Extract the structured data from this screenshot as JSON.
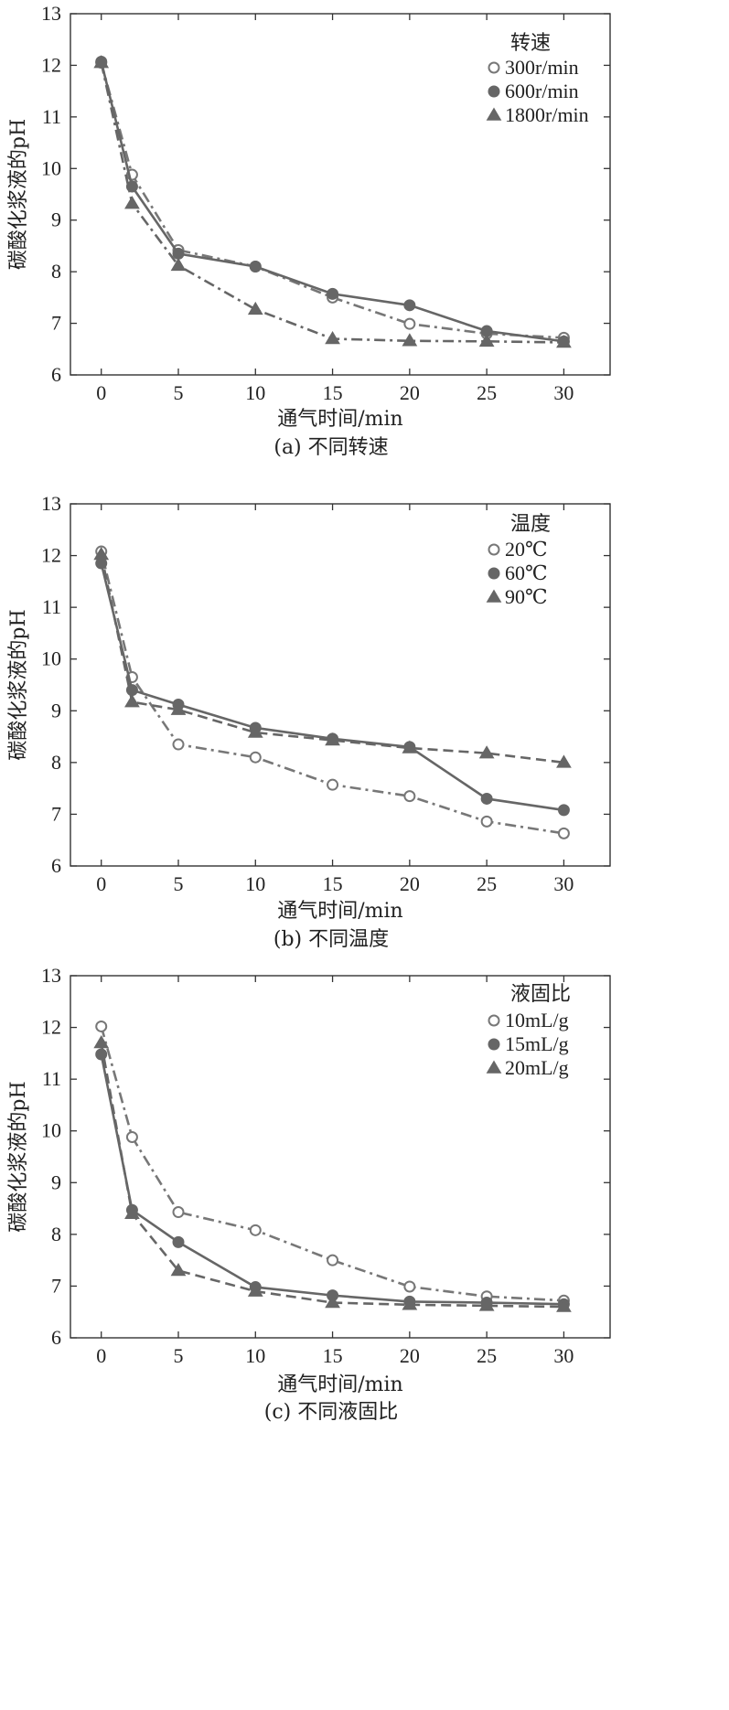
{
  "chart_data": [
    {
      "type": "line",
      "caption": "(a) 不同转速",
      "xlabel": "通气时间/min",
      "ylabel": "碳酸化浆液的pH",
      "xlim": [
        -2,
        33
      ],
      "ylim": [
        6,
        13
      ],
      "xticks": [
        0,
        5,
        10,
        15,
        20,
        25,
        30
      ],
      "yticks": [
        6,
        7,
        8,
        9,
        10,
        11,
        12,
        13
      ],
      "legend_title": "转速",
      "legend_position": "top-right",
      "x": [
        0,
        2,
        5,
        10,
        15,
        20,
        25,
        30
      ],
      "series": [
        {
          "name": "300r/min",
          "marker": "open-circle",
          "dash": "dashdot",
          "color": "#777777",
          "values": [
            12.05,
            9.88,
            8.42,
            8.1,
            7.5,
            6.99,
            6.8,
            6.72
          ]
        },
        {
          "name": "600r/min",
          "marker": "filled-circle",
          "dash": "solid",
          "color": "#666666",
          "values": [
            12.07,
            9.65,
            8.35,
            8.1,
            7.57,
            7.35,
            6.85,
            6.65
          ]
        },
        {
          "name": "1800r/min",
          "marker": "filled-triangle",
          "dash": "dashdot",
          "color": "#666666",
          "values": [
            12.05,
            9.32,
            8.12,
            7.27,
            6.7,
            6.66,
            6.65,
            6.63
          ]
        }
      ]
    },
    {
      "type": "line",
      "caption": "(b) 不同温度",
      "xlabel": "通气时间/min",
      "ylabel": "碳酸化浆液的pH",
      "xlim": [
        -2,
        33
      ],
      "ylim": [
        6,
        13
      ],
      "xticks": [
        0,
        5,
        10,
        15,
        20,
        25,
        30
      ],
      "yticks": [
        6,
        7,
        8,
        9,
        10,
        11,
        12,
        13
      ],
      "legend_title": "温度",
      "legend_position": "top-right",
      "x": [
        0,
        2,
        5,
        10,
        15,
        20,
        25,
        30
      ],
      "series": [
        {
          "name": "20℃",
          "marker": "open-circle",
          "dash": "dashdot",
          "color": "#777777",
          "values": [
            12.08,
            9.65,
            8.35,
            8.1,
            7.57,
            7.35,
            6.86,
            6.63
          ]
        },
        {
          "name": "60℃",
          "marker": "filled-circle",
          "dash": "solid",
          "color": "#666666",
          "values": [
            11.85,
            9.4,
            9.12,
            8.67,
            8.46,
            8.3,
            7.3,
            7.08
          ]
        },
        {
          "name": "90℃",
          "marker": "filled-triangle",
          "dash": "dashed",
          "color": "#666666",
          "values": [
            12.02,
            9.17,
            9.02,
            8.58,
            8.43,
            8.28,
            8.18,
            8.0
          ]
        }
      ]
    },
    {
      "type": "line",
      "caption": "(c) 不同液固比",
      "xlabel": "通气时间/min",
      "ylabel": "碳酸化浆液的pH",
      "xlim": [
        -2,
        33
      ],
      "ylim": [
        6,
        13
      ],
      "xticks": [
        0,
        5,
        10,
        15,
        20,
        25,
        30
      ],
      "yticks": [
        6,
        7,
        8,
        9,
        10,
        11,
        12,
        13
      ],
      "legend_title": "液固比",
      "legend_position": "top-right",
      "x": [
        0,
        2,
        5,
        10,
        15,
        20,
        25,
        30
      ],
      "series": [
        {
          "name": "10mL/g",
          "marker": "open-circle",
          "dash": "dashdot",
          "color": "#777777",
          "values": [
            12.02,
            9.88,
            8.43,
            8.08,
            7.5,
            6.99,
            6.8,
            6.72
          ]
        },
        {
          "name": "15mL/g",
          "marker": "filled-circle",
          "dash": "solid",
          "color": "#666666",
          "values": [
            11.48,
            8.47,
            7.85,
            6.98,
            6.82,
            6.7,
            6.68,
            6.65
          ]
        },
        {
          "name": "20mL/g",
          "marker": "filled-triangle",
          "dash": "dashed",
          "color": "#666666",
          "values": [
            11.7,
            8.4,
            7.3,
            6.9,
            6.68,
            6.64,
            6.62,
            6.6
          ]
        }
      ]
    }
  ]
}
